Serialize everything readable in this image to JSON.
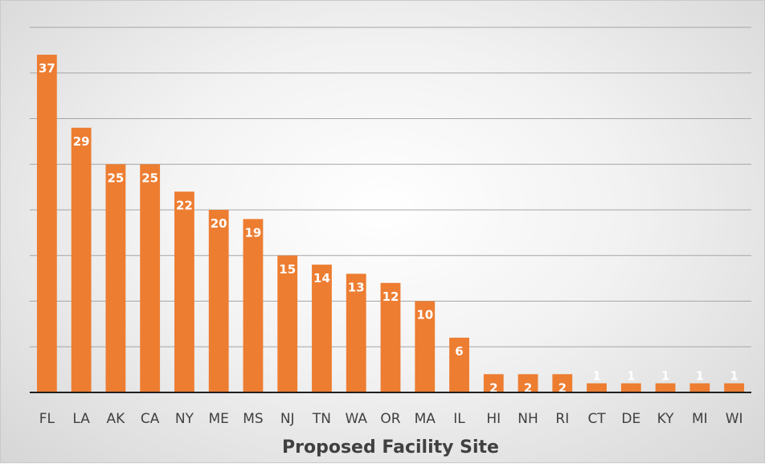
{
  "chart_data": {
    "type": "bar",
    "categories": [
      "FL",
      "LA",
      "AK",
      "CA",
      "NY",
      "ME",
      "MS",
      "NJ",
      "TN",
      "WA",
      "OR",
      "MA",
      "IL",
      "HI",
      "NH",
      "RI",
      "CT",
      "DE",
      "KY",
      "MI",
      "WI"
    ],
    "values": [
      37,
      29,
      25,
      25,
      22,
      20,
      19,
      15,
      14,
      13,
      12,
      10,
      6,
      2,
      2,
      2,
      1,
      1,
      1,
      1,
      1
    ],
    "title": "",
    "xlabel": "Proposed Facility Site",
    "ylabel": "",
    "ylim": [
      0,
      40
    ],
    "grid": true,
    "legend": "none",
    "colors": {
      "bar": "#ed7d31"
    }
  }
}
